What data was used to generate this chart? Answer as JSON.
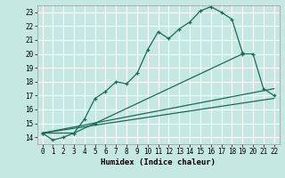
{
  "xlabel": "Humidex (Indice chaleur)",
  "bg_color": "#c5e8e2",
  "grid_color": "#ffffff",
  "line_color": "#1a6b5a",
  "xlim": [
    -0.5,
    22.5
  ],
  "ylim": [
    13.5,
    23.5
  ],
  "xticks": [
    0,
    1,
    2,
    3,
    4,
    5,
    6,
    7,
    8,
    9,
    10,
    11,
    12,
    13,
    14,
    15,
    16,
    17,
    18,
    19,
    20,
    21,
    22
  ],
  "yticks": [
    14,
    15,
    16,
    17,
    18,
    19,
    20,
    21,
    22,
    23
  ],
  "curve1_x": [
    0,
    1,
    2,
    3,
    4,
    5,
    6,
    7,
    8,
    9,
    10,
    11,
    12,
    13,
    14,
    15,
    16,
    17,
    18,
    19
  ],
  "curve1_y": [
    14.3,
    13.8,
    14.0,
    14.3,
    15.3,
    16.8,
    17.3,
    18.0,
    17.85,
    18.6,
    20.3,
    21.6,
    21.1,
    21.8,
    22.3,
    23.1,
    23.4,
    23.0,
    22.5,
    20.1
  ],
  "curve2_x": [
    0,
    3,
    5,
    19,
    20,
    21,
    22
  ],
  "curve2_y": [
    14.3,
    14.3,
    15.0,
    20.0,
    20.0,
    17.5,
    17.0
  ],
  "line1_x": [
    0,
    22
  ],
  "line1_y": [
    14.3,
    17.5
  ],
  "line2_x": [
    0,
    22
  ],
  "line2_y": [
    14.3,
    16.8
  ]
}
